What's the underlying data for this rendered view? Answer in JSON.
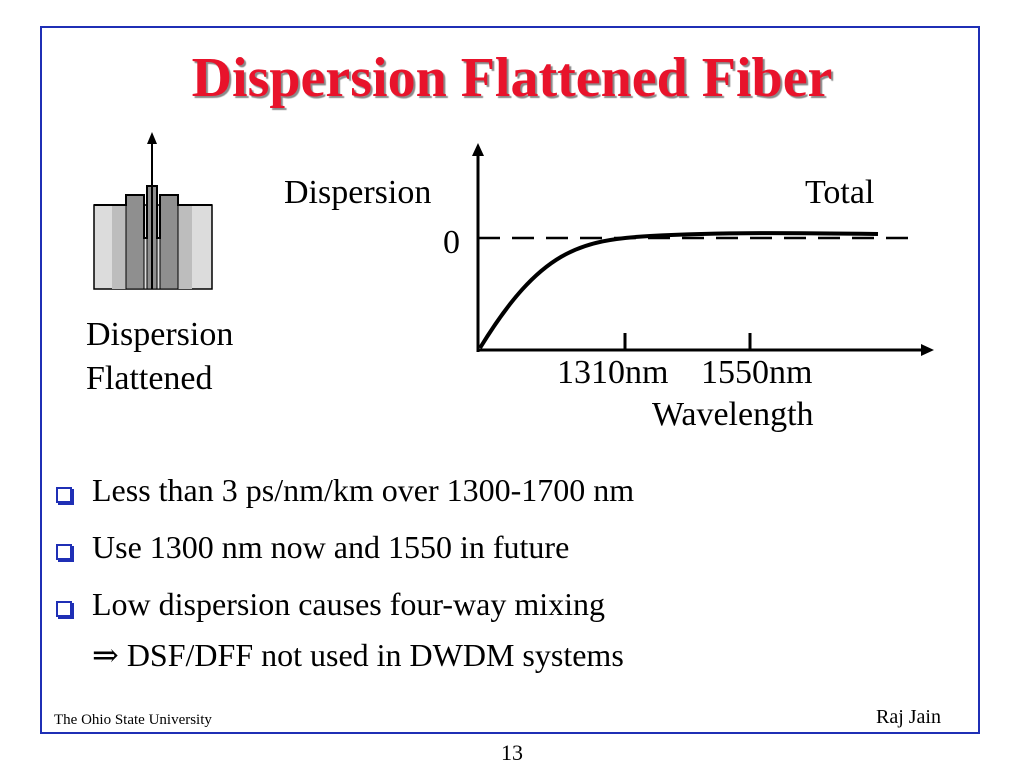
{
  "slide": {
    "title": "Dispersion Flattened Fiber",
    "footer_left": "The Ohio State University",
    "footer_right": "Raj Jain",
    "page_number": "13"
  },
  "fiber_icon": {
    "label_line1": "Dispersion",
    "label_line2": "Flattened"
  },
  "graph": {
    "y_label": "Dispersion",
    "zero_label": "0",
    "curve_label": "Total",
    "tick1": "1310nm",
    "tick2": "1550nm",
    "x_label": "Wavelength"
  },
  "bullets": [
    "Less than 3 ps/nm/km over 1300-1700 nm",
    "Use 1300 nm now and 1550 in future",
    "Low dispersion causes four-way mixing"
  ],
  "sub_bullet": "⇒ DSF/DFF not used in DWDM systems",
  "colors": {
    "title": "#e8132b",
    "frame": "#1f2fb5",
    "bullet_box": "#1f2fb5"
  }
}
